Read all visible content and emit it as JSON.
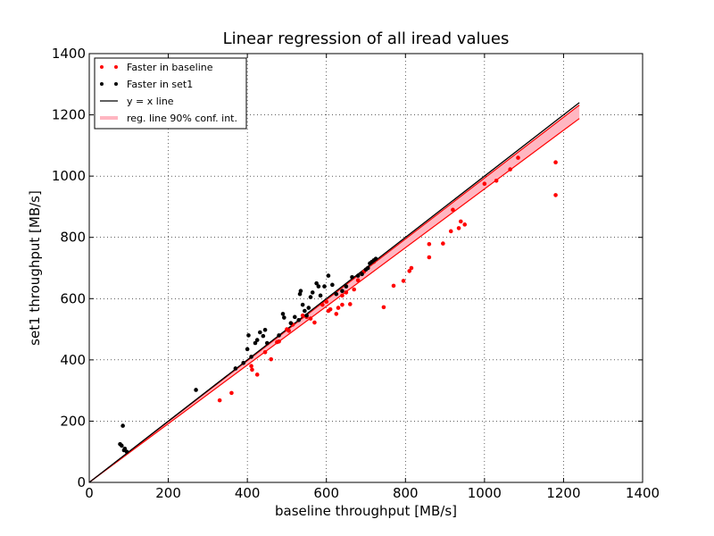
{
  "chart_data": {
    "type": "scatter",
    "title": "Linear regression of all iread values",
    "xlabel": "baseline throughput [MB/s]",
    "ylabel": "set1 throughput [MB/s]",
    "xlim": [
      0,
      1400
    ],
    "ylim": [
      0,
      1400
    ],
    "xticks": [
      0,
      200,
      400,
      600,
      800,
      1000,
      1200,
      1400
    ],
    "yticks": [
      0,
      200,
      400,
      600,
      800,
      1000,
      1200,
      1400
    ],
    "grid": "dotted",
    "legend_position": "top-left",
    "legend": [
      {
        "label": "Faster in baseline",
        "kind": "points",
        "color": "#ff0000"
      },
      {
        "label": "Faster in set1",
        "kind": "points",
        "color": "#000000"
      },
      {
        "label": "y = x line",
        "kind": "line",
        "color": "#000000"
      },
      {
        "label": "reg. line 90% conf. int.",
        "kind": "band",
        "color": "#ffb6c1"
      }
    ],
    "series": [
      {
        "name": "Faster in baseline",
        "color": "#ff0000",
        "points": [
          [
            330,
            268
          ],
          [
            360,
            292
          ],
          [
            410,
            380
          ],
          [
            412,
            368
          ],
          [
            425,
            352
          ],
          [
            445,
            425
          ],
          [
            460,
            402
          ],
          [
            475,
            458
          ],
          [
            480,
            460
          ],
          [
            500,
            500
          ],
          [
            505,
            495
          ],
          [
            515,
            515
          ],
          [
            540,
            545
          ],
          [
            550,
            540
          ],
          [
            560,
            535
          ],
          [
            570,
            522
          ],
          [
            590,
            580
          ],
          [
            600,
            590
          ],
          [
            605,
            560
          ],
          [
            610,
            565
          ],
          [
            625,
            550
          ],
          [
            630,
            570
          ],
          [
            640,
            610
          ],
          [
            640,
            580
          ],
          [
            650,
            620
          ],
          [
            660,
            582
          ],
          [
            670,
            630
          ],
          [
            680,
            660
          ],
          [
            695,
            688
          ],
          [
            705,
            700
          ],
          [
            720,
            720
          ],
          [
            745,
            572
          ],
          [
            770,
            642
          ],
          [
            795,
            658
          ],
          [
            810,
            690
          ],
          [
            815,
            700
          ],
          [
            860,
            735
          ],
          [
            860,
            778
          ],
          [
            895,
            780
          ],
          [
            915,
            820
          ],
          [
            920,
            890
          ],
          [
            935,
            830
          ],
          [
            940,
            852
          ],
          [
            950,
            842
          ],
          [
            1000,
            975
          ],
          [
            1030,
            985
          ],
          [
            1065,
            1022
          ],
          [
            1085,
            1060
          ],
          [
            1180,
            1045
          ],
          [
            1180,
            938
          ]
        ]
      },
      {
        "name": "Faster in set1",
        "color": "#000000",
        "points": [
          [
            78,
            125
          ],
          [
            82,
            120
          ],
          [
            85,
            185
          ],
          [
            88,
            105
          ],
          [
            90,
            110
          ],
          [
            95,
            100
          ],
          [
            270,
            302
          ],
          [
            370,
            372
          ],
          [
            390,
            390
          ],
          [
            400,
            435
          ],
          [
            403,
            480
          ],
          [
            410,
            410
          ],
          [
            420,
            455
          ],
          [
            425,
            465
          ],
          [
            432,
            490
          ],
          [
            440,
            478
          ],
          [
            445,
            498
          ],
          [
            450,
            455
          ],
          [
            480,
            480
          ],
          [
            490,
            550
          ],
          [
            493,
            538
          ],
          [
            510,
            520
          ],
          [
            520,
            540
          ],
          [
            530,
            530
          ],
          [
            535,
            625
          ],
          [
            533,
            615
          ],
          [
            540,
            580
          ],
          [
            545,
            560
          ],
          [
            550,
            545
          ],
          [
            555,
            570
          ],
          [
            560,
            605
          ],
          [
            565,
            620
          ],
          [
            575,
            650
          ],
          [
            580,
            640
          ],
          [
            585,
            610
          ],
          [
            595,
            640
          ],
          [
            605,
            675
          ],
          [
            615,
            645
          ],
          [
            625,
            615
          ],
          [
            640,
            625
          ],
          [
            650,
            640
          ],
          [
            665,
            670
          ],
          [
            680,
            675
          ],
          [
            690,
            680
          ],
          [
            700,
            695
          ],
          [
            705,
            700
          ],
          [
            710,
            715
          ],
          [
            715,
            720
          ],
          [
            720,
            725
          ],
          [
            725,
            730
          ]
        ]
      }
    ],
    "lines": {
      "identity": {
        "label": "y = x line",
        "x": [
          0,
          1240
        ],
        "y": [
          0,
          1240
        ],
        "color": "#000000"
      },
      "regression_band": {
        "label": "reg. line 90% conf. int.",
        "x": [
          0,
          1240
        ],
        "y_lower": [
          0,
          1188
        ],
        "y_upper": [
          0,
          1232
        ],
        "y_center": [
          0,
          1210
        ],
        "edge_color": "#ff0000",
        "fill_color": "#ffb6c1"
      }
    }
  }
}
